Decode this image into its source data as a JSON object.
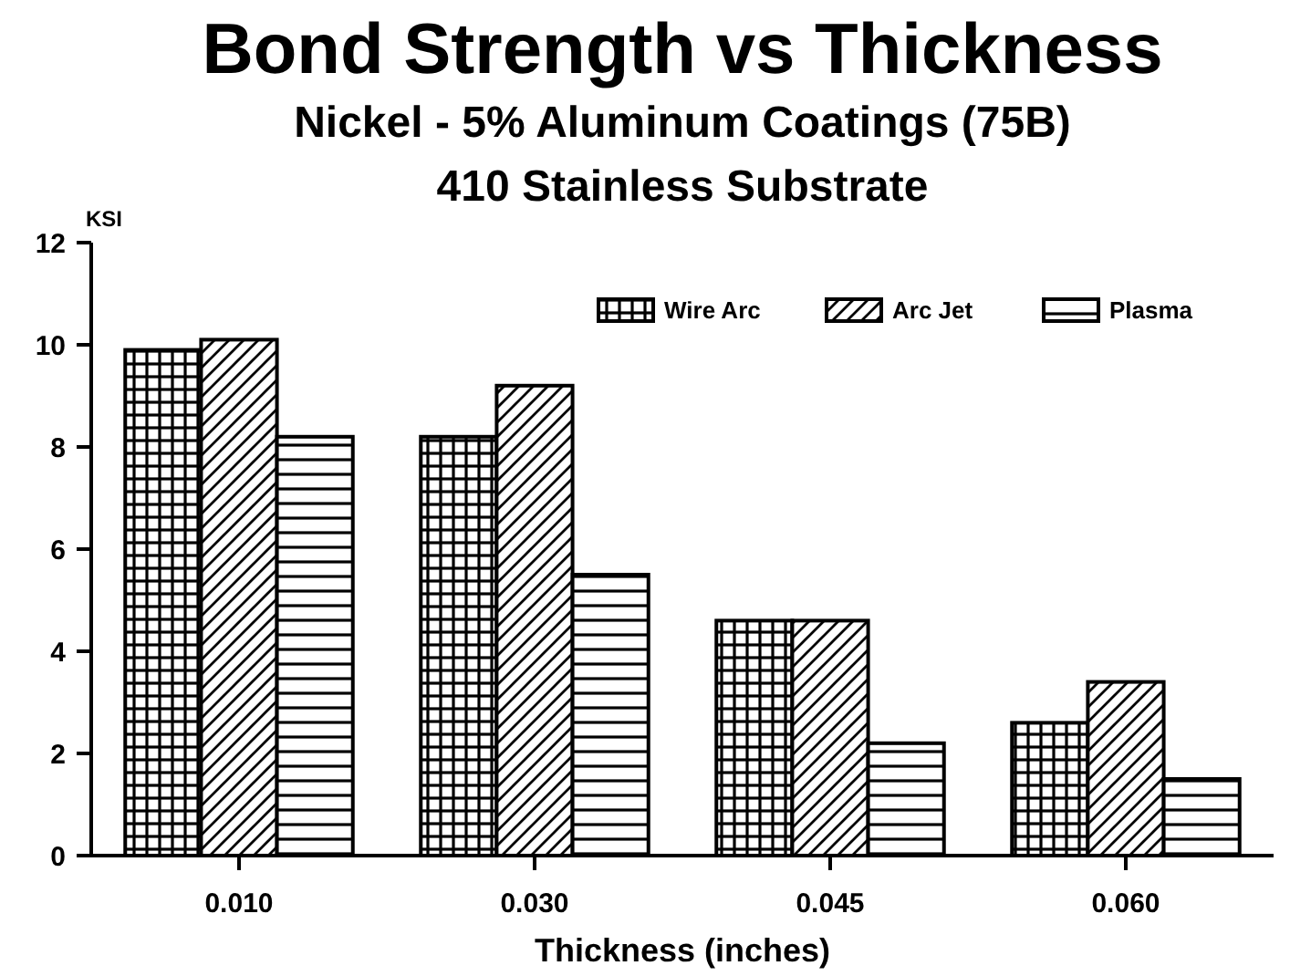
{
  "chart_data": {
    "type": "bar",
    "title": "Bond Strength vs Thickness",
    "subtitle": "Nickel - 5% Aluminum Coatings (75B)\n410 Stainless Substrate",
    "xlabel": "Thickness (inches)",
    "ylabel": "KSI",
    "categories": [
      "0.010",
      "0.030",
      "0.045",
      "0.060"
    ],
    "series": [
      {
        "name": "Wire Arc",
        "color": "#000000",
        "values": [
          9.9,
          8.2,
          4.6,
          2.6
        ]
      },
      {
        "name": "Arc Jet",
        "color": "#000000",
        "values": [
          10.1,
          9.2,
          4.6,
          3.4
        ]
      },
      {
        "name": "Plasma",
        "color": "#000000",
        "values": [
          8.2,
          5.5,
          2.2,
          1.5
        ]
      }
    ],
    "ylim": [
      0,
      12
    ],
    "yticks": [
      0,
      2,
      4,
      6,
      8,
      10,
      12
    ],
    "legend": "top right"
  }
}
